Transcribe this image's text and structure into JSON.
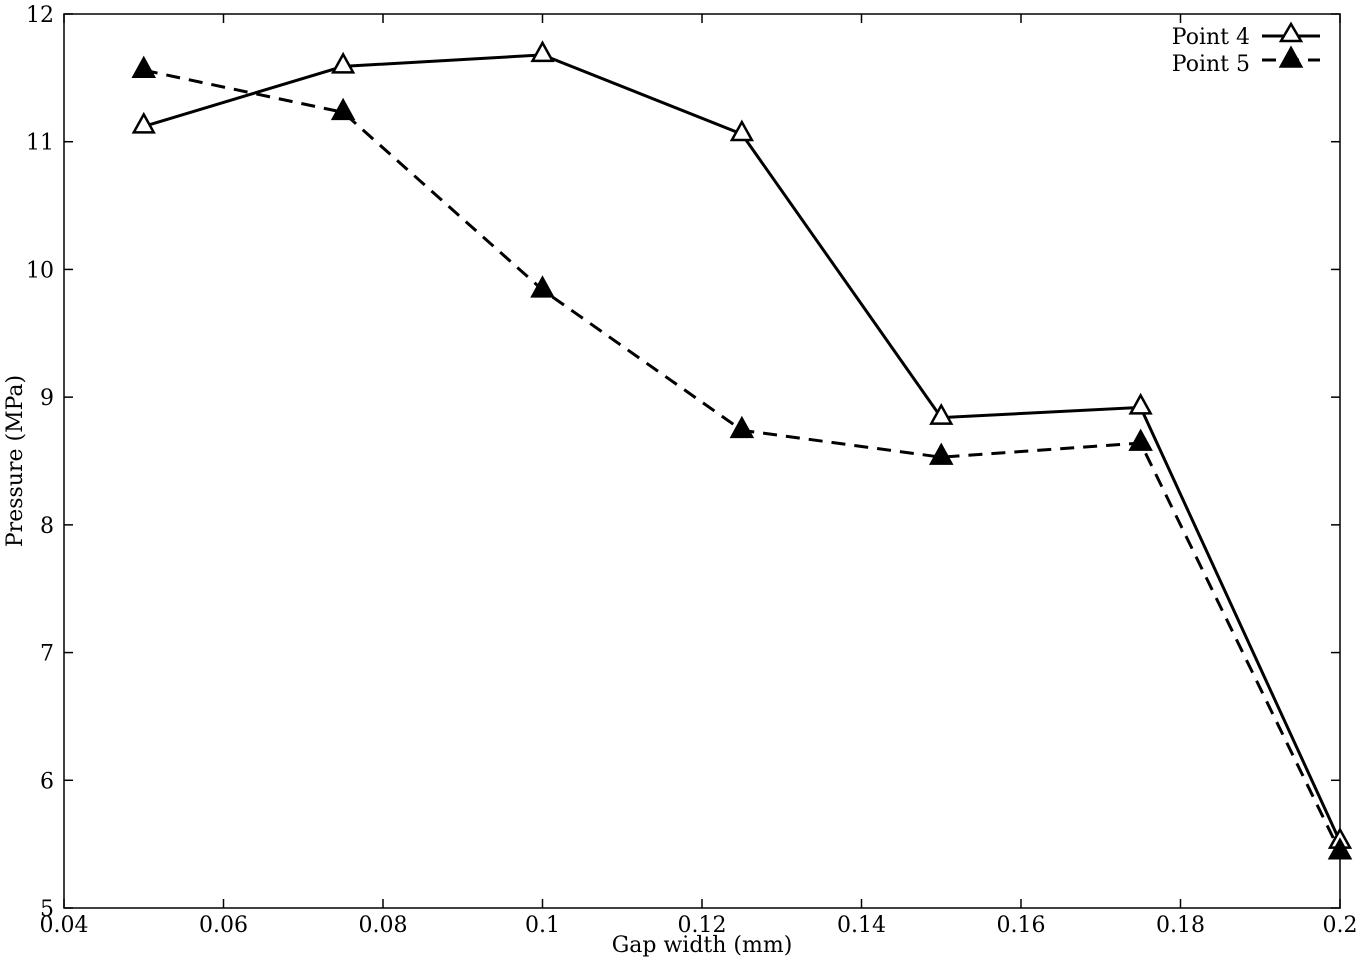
{
  "chart_data": {
    "type": "line",
    "xlabel": "Gap width (mm)",
    "ylabel": "Pressure (MPa)",
    "xlim": [
      0.04,
      0.2
    ],
    "ylim": [
      5,
      12
    ],
    "xticks": [
      "0.04",
      "0.06",
      "0.08",
      "0.1",
      "0.12",
      "0.14",
      "0.16",
      "0.18",
      "0.2"
    ],
    "yticks": [
      "5",
      "6",
      "7",
      "8",
      "9",
      "10",
      "11",
      "12"
    ],
    "grid": false,
    "legend_position": "top-right",
    "x": [
      0.05,
      0.075,
      0.1,
      0.125,
      0.15,
      0.175,
      0.2
    ],
    "series": [
      {
        "name": "Point 4",
        "marker": "open-triangle",
        "line": "solid",
        "values": [
          11.12,
          11.59,
          11.68,
          11.06,
          8.84,
          8.92,
          5.52
        ]
      },
      {
        "name": "Point 5",
        "marker": "filled-triangle",
        "line": "dashed",
        "values": [
          11.56,
          11.23,
          9.84,
          8.74,
          8.53,
          8.64,
          5.44
        ]
      }
    ]
  }
}
